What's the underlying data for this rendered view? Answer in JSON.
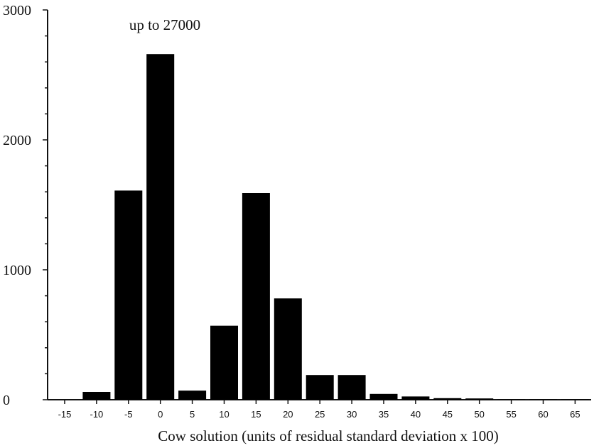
{
  "chart_data": {
    "type": "bar",
    "title": "",
    "annotation": "up to 27000",
    "xlabel": "Cow solution (units of residual standard deviation x 100)",
    "ylabel": "",
    "ylim": [
      0,
      3000
    ],
    "yticks": [
      0,
      1000,
      2000,
      3000
    ],
    "categories": [
      "-15",
      "-10",
      "-5",
      "0",
      "5",
      "10",
      "15",
      "20",
      "25",
      "30",
      "35",
      "40",
      "45",
      "50",
      "55",
      "60",
      "65"
    ],
    "values": [
      0,
      60,
      1610,
      2660,
      70,
      570,
      1590,
      780,
      190,
      190,
      45,
      25,
      12,
      10,
      3,
      3,
      2
    ],
    "grid": false,
    "bar_color": "#000000"
  }
}
